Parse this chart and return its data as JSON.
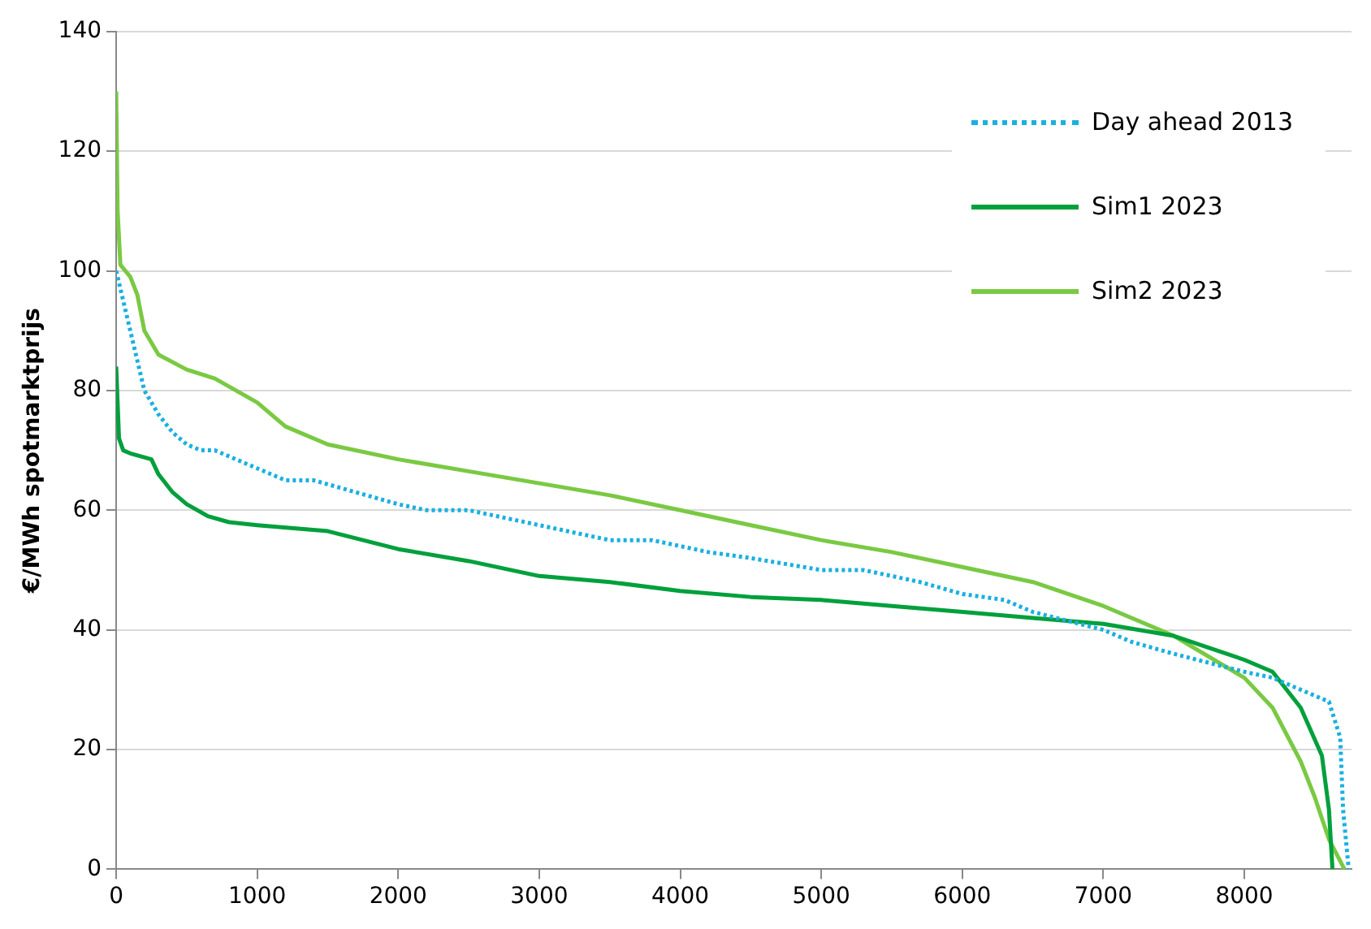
{
  "chart_data": {
    "type": "line",
    "ylabel": "€/MWh spotmarktprijs",
    "xlim": [
      0,
      8760
    ],
    "xticks": [
      0,
      1000,
      2000,
      3000,
      4000,
      5000,
      6000,
      7000,
      8000
    ],
    "ylim": [
      0,
      140
    ],
    "yticks": [
      0,
      20,
      40,
      60,
      80,
      100,
      120,
      140
    ],
    "grid": "y",
    "legend": "top right",
    "marker": "none",
    "series": [
      {
        "name": "Day ahead 2013",
        "color": "#1ab0e0",
        "line_style": "dotted",
        "x": [
          0,
          50,
          100,
          200,
          300,
          400,
          500,
          600,
          700,
          1000,
          1200,
          1400,
          2000,
          2200,
          2500,
          3000,
          3500,
          3800,
          4200,
          4500,
          5000,
          5300,
          5700,
          6000,
          6300,
          6500,
          7000,
          7200,
          7500,
          8000,
          8200,
          8400,
          8600,
          8680,
          8700,
          8740
        ],
        "values": [
          100,
          95,
          90,
          80,
          76,
          73,
          71,
          70,
          70,
          67,
          65,
          65,
          61,
          60,
          60,
          57.5,
          55,
          55,
          53,
          52,
          50,
          50,
          48,
          46,
          45,
          43,
          40,
          38,
          36,
          33,
          32,
          30,
          28,
          22,
          10,
          0
        ]
      },
      {
        "name": "Sim1 2023",
        "color": "#00a03c",
        "line_style": "solid",
        "x": [
          0,
          20,
          50,
          100,
          250,
          300,
          400,
          500,
          650,
          800,
          1000,
          1500,
          2000,
          2500,
          3000,
          3500,
          4000,
          4500,
          5000,
          5500,
          6000,
          6500,
          7000,
          7500,
          8000,
          8200,
          8400,
          8550,
          8600,
          8625
        ],
        "values": [
          84,
          72,
          70,
          69.5,
          68.5,
          66,
          63,
          61,
          59,
          58,
          57.5,
          56.5,
          53.5,
          51.5,
          49,
          48,
          46.5,
          45.5,
          45,
          44,
          43,
          42,
          41,
          39,
          35,
          33,
          27,
          19,
          10,
          0
        ]
      },
      {
        "name": "Sim2 2023",
        "color": "#7ac943",
        "line_style": "solid",
        "x": [
          0,
          10,
          30,
          100,
          150,
          200,
          300,
          500,
          700,
          1000,
          1200,
          1500,
          2000,
          2500,
          3000,
          3500,
          4000,
          4500,
          5000,
          5500,
          6000,
          6500,
          7000,
          7500,
          8000,
          8200,
          8400,
          8500,
          8600,
          8710
        ],
        "values": [
          130,
          110,
          101,
          99,
          96,
          90,
          86,
          83.5,
          82,
          78,
          74,
          71,
          68.5,
          66.5,
          64.5,
          62.5,
          60,
          57.5,
          55,
          53,
          50.5,
          48,
          44,
          39,
          32,
          27,
          18,
          12,
          5,
          0
        ]
      }
    ]
  }
}
